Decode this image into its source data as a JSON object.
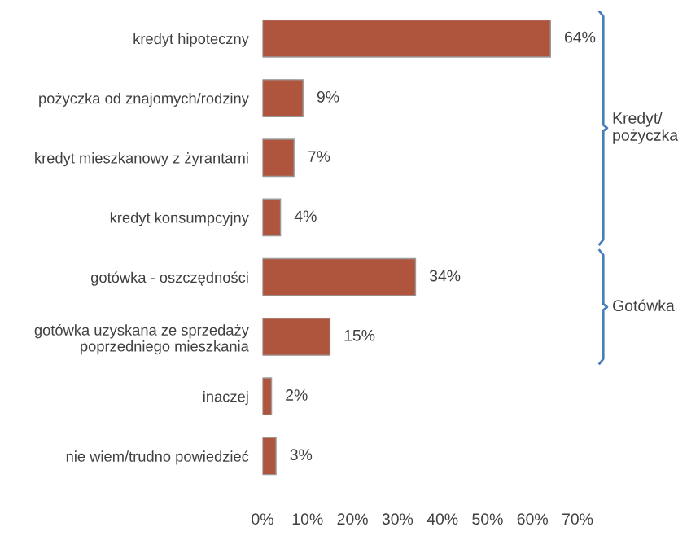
{
  "chart_data": {
    "type": "bar",
    "orientation": "horizontal",
    "categories": [
      "kredyt hipoteczny",
      "pożyczka od znajomych/rodziny",
      "kredyt mieszkanowy z żyrantami",
      "kredyt konsumpcyjny",
      "gotówka - oszczędności",
      "gotówka uzyskana ze sprzedaży\npoprzedniego mieszkania",
      "inaczej",
      "nie wiem/trudno powiedzieć"
    ],
    "values": [
      64,
      9,
      7,
      4,
      34,
      15,
      2,
      3
    ],
    "value_labels": [
      "64%",
      "9%",
      "7%",
      "4%",
      "34%",
      "15%",
      "2%",
      "3%"
    ],
    "color": "#b0553d",
    "xlim": [
      0,
      70
    ],
    "xticks": [
      {
        "value": 0,
        "label": "0%"
      },
      {
        "value": 10,
        "label": "10%"
      },
      {
        "value": 20,
        "label": "20%"
      },
      {
        "value": 30,
        "label": "30%"
      },
      {
        "value": 40,
        "label": "40%"
      },
      {
        "value": 50,
        "label": "50%"
      },
      {
        "value": 60,
        "label": "60%"
      },
      {
        "value": 70,
        "label": "70%"
      }
    ],
    "annotations": [
      "Kredyt/\npożyczka",
      "Gotówka"
    ],
    "grid": false,
    "legend": false
  }
}
